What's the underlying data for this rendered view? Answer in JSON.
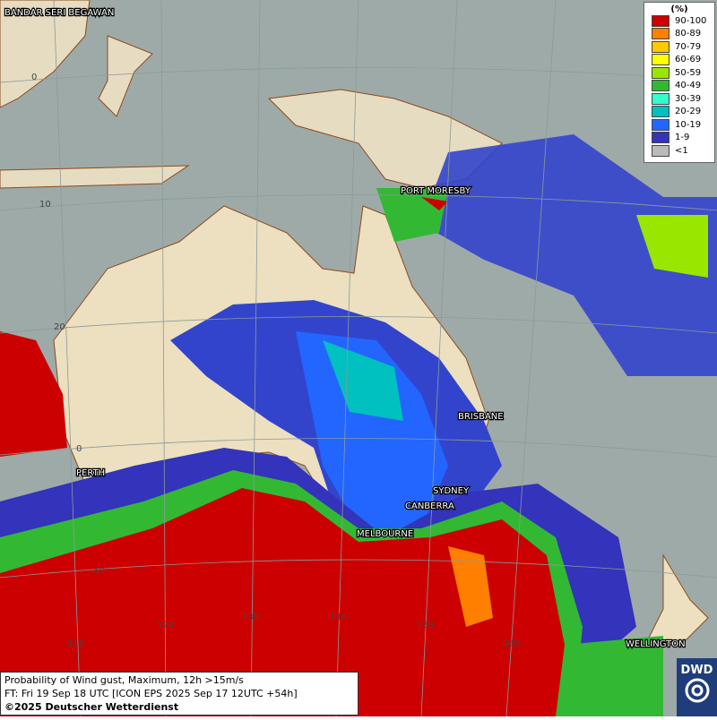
{
  "map": {
    "cities": [
      "BANDAR SERI BEGAWAN",
      "PORT MORESBY",
      "BRISBANE",
      "PERTH",
      "SYDNEY",
      "CANBERRA",
      "MELBOURNE",
      "WELLINGTON"
    ],
    "latitude_labels": [
      "0",
      "10",
      "20",
      "0",
      "40"
    ],
    "longitude_labels": [
      "110",
      "120",
      "130",
      "140",
      "150",
      "160"
    ],
    "legend": {
      "title": "(%)",
      "entries": [
        {
          "label": "90-100",
          "color": "#cc0000"
        },
        {
          "label": "80-89",
          "color": "#ff7f00"
        },
        {
          "label": "70-79",
          "color": "#ffc800"
        },
        {
          "label": "60-69",
          "color": "#ffff00"
        },
        {
          "label": "50-59",
          "color": "#99e600"
        },
        {
          "label": "40-49",
          "color": "#33b833"
        },
        {
          "label": "30-39",
          "color": "#33ffcc"
        },
        {
          "label": "20-29",
          "color": "#00c0c0"
        },
        {
          "label": "10-19",
          "color": "#2266ff"
        },
        {
          "label": "1-9",
          "color": "#3333bb"
        },
        {
          "label": "<1",
          "color": "#bbbbbb"
        }
      ]
    },
    "footer": {
      "line1": "Probability of Wind gust, Maximum, 12h >15m/s",
      "line2": "FT: Fri 19 Sep 18 UTC [ICON EPS 2025 Sep 17 12UTC +54h]",
      "copyright": "©2025 Deutscher Wetterdienst"
    },
    "logo": "DWD"
  }
}
